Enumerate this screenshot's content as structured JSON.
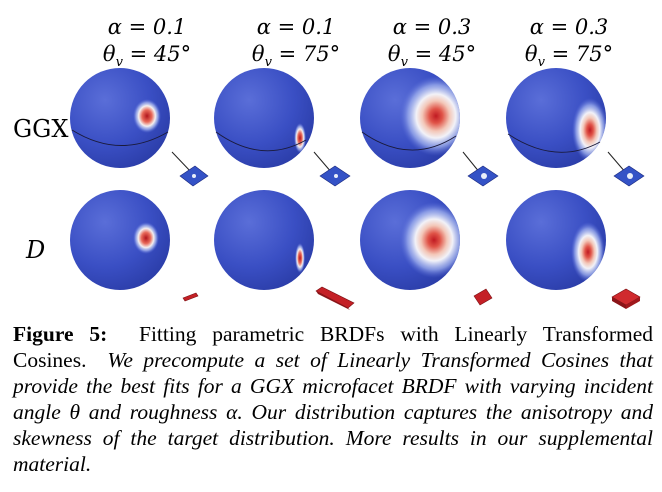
{
  "columns": [
    {
      "alpha": "α = 0.1",
      "theta": "θ",
      "theta_sub": "v",
      "theta_rest": " = 45°"
    },
    {
      "alpha": "α = 0.1",
      "theta": "θ",
      "theta_sub": "v",
      "theta_rest": " = 75°"
    },
    {
      "alpha": "α = 0.3",
      "theta": "θ",
      "theta_sub": "v",
      "theta_rest": " = 45°"
    },
    {
      "alpha": "α = 0.3",
      "theta": "θ",
      "theta_sub": "v",
      "theta_rest": " = 75°"
    }
  ],
  "rows": {
    "ggx": "GGX",
    "d": "D"
  },
  "caption": {
    "label": "Figure 5:",
    "title": "Fitting parametric BRDFs with Linearly Transformed Cosines.",
    "body": "We precompute a set of Linearly Transformed Cosines that provide the best fits for a GGX microfacet BRDF with varying incident angle θ and roughness α. Our distribution captures the anisotropy and skewness of the target distribution. More results in our supplemental material."
  },
  "colors": {
    "sphere_base": "#3a4fc4",
    "lobe_peak": "#c8202a",
    "plate_blue": "#3452c6",
    "plate_red": "#c42026"
  }
}
